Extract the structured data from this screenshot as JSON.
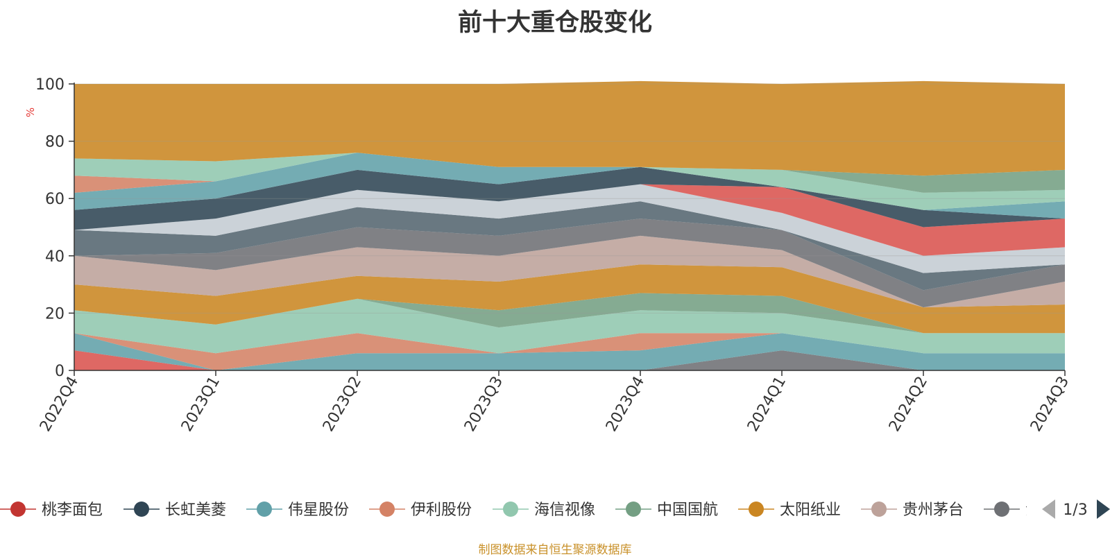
{
  "chart_data": {
    "type": "area",
    "stacked": true,
    "title": "前十大重仓股变化",
    "ylabel": "%",
    "ylim": [
      0,
      100
    ],
    "yticks": [
      "0",
      "20",
      "40",
      "60",
      "80",
      "100"
    ],
    "categories": [
      "2022Q4",
      "2023Q1",
      "2023Q2",
      "2023Q3",
      "2023Q4",
      "2024Q1",
      "2024Q2",
      "2024Q3"
    ],
    "series": [
      {
        "name": "",
        "color": "#6e7074",
        "values": [
          0,
          0,
          0,
          0,
          0,
          7,
          0,
          0
        ]
      },
      {
        "name": "桃李面包",
        "color": "#d9534f",
        "values": [
          7,
          0,
          0,
          0,
          0,
          0,
          0,
          0
        ]
      },
      {
        "name": "伟星股份",
        "color": "#61a0a8",
        "values": [
          6,
          0,
          6,
          6,
          7,
          6,
          6,
          6
        ]
      },
      {
        "name": "伊利股份",
        "color": "#d48265",
        "values": [
          0,
          6,
          7,
          0,
          6,
          0,
          0,
          0
        ]
      },
      {
        "name": "海信视像",
        "color": "#91c7ae",
        "values": [
          8,
          10,
          12,
          9,
          8,
          7,
          7,
          7
        ]
      },
      {
        "name": "中国国航",
        "color": "#749f83",
        "values": [
          0,
          0,
          0,
          6,
          6,
          6,
          0,
          0
        ]
      },
      {
        "name": "太阳纸业",
        "color": "#ca8622",
        "values": [
          9,
          10,
          8,
          10,
          10,
          10,
          9,
          10
        ]
      },
      {
        "name": "贵州茅台",
        "color": "#bda29a",
        "values": [
          10,
          9,
          10,
          9,
          10,
          6,
          0,
          8
        ]
      },
      {
        "name": "",
        "color": "#6e7074",
        "values": [
          0,
          6,
          7,
          7,
          6,
          7,
          6,
          6
        ]
      },
      {
        "name": "",
        "color": "#546570",
        "values": [
          9,
          6,
          7,
          6,
          6,
          0,
          6,
          0
        ]
      },
      {
        "name": "",
        "color": "#c4ccd3",
        "values": [
          0,
          6,
          6,
          6,
          6,
          6,
          6,
          6
        ]
      },
      {
        "name": "",
        "color": "#d9534f",
        "values": [
          0,
          0,
          0,
          0,
          0,
          9,
          10,
          10
        ]
      },
      {
        "name": "长虹美菱",
        "color": "#2f4554",
        "values": [
          7,
          7,
          7,
          6,
          6,
          0,
          6,
          0
        ]
      },
      {
        "name": "",
        "color": "#61a0a8",
        "values": [
          6,
          6,
          6,
          6,
          0,
          0,
          0,
          6
        ]
      },
      {
        "name": "",
        "color": "#91c7ae",
        "values": [
          0,
          0,
          0,
          0,
          0,
          6,
          6,
          4
        ]
      },
      {
        "name": "",
        "color": "#749f83",
        "values": [
          0,
          0,
          0,
          0,
          0,
          0,
          6,
          7
        ]
      },
      {
        "name": "",
        "color": "#d48265",
        "values": [
          6,
          0,
          0,
          0,
          0,
          0,
          0,
          0
        ]
      },
      {
        "name": "",
        "color": "#91c7ae",
        "values": [
          6,
          7,
          0,
          0,
          0,
          0,
          0,
          0
        ]
      },
      {
        "name": "",
        "color": "#ca8622",
        "values": [
          26,
          27,
          24,
          29,
          30,
          30,
          33,
          30
        ]
      }
    ],
    "legend": {
      "position": "bottom",
      "items": [
        {
          "name": "桃李面包",
          "color": "#c23531"
        },
        {
          "name": "长虹美菱",
          "color": "#2f4554"
        },
        {
          "name": "伟星股份",
          "color": "#61a0a8"
        },
        {
          "name": "伊利股份",
          "color": "#d48265"
        },
        {
          "name": "海信视像",
          "color": "#91c7ae"
        },
        {
          "name": "中国国航",
          "color": "#749f83"
        },
        {
          "name": "太阳纸业",
          "color": "#ca8622"
        },
        {
          "name": "贵州茅台",
          "color": "#bda29a"
        },
        {
          "name": "江",
          "color": "#6e7074"
        }
      ],
      "page": "1/3"
    },
    "grid": true
  },
  "footnote": "制图数据来自恒生聚源数据库"
}
